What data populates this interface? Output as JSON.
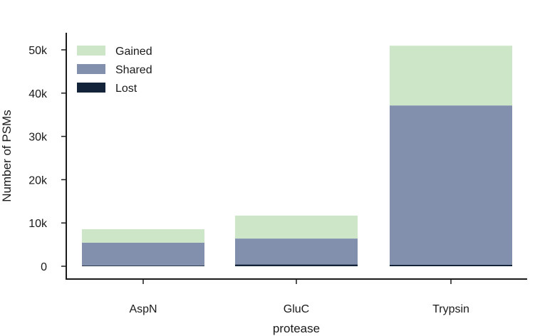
{
  "chart_data": {
    "type": "bar",
    "stacked": true,
    "title": "",
    "xlabel": "protease",
    "ylabel": "Number of PSMs",
    "categories": [
      "AspN",
      "GluC",
      "Trypsin"
    ],
    "series": [
      {
        "name": "Lost",
        "values": [
          150,
          400,
          350
        ],
        "color": "#13233a"
      },
      {
        "name": "Shared",
        "values": [
          5300,
          6000,
          36800
        ],
        "color": "#8290ae"
      },
      {
        "name": "Gained",
        "values": [
          3100,
          5300,
          13800
        ],
        "color": "#cde6c7"
      }
    ],
    "legend_order": [
      "Gained",
      "Shared",
      "Lost"
    ],
    "legend_position": "top-left",
    "ylim": [
      -3000,
      53000
    ],
    "yticks": [
      0,
      10000,
      20000,
      30000,
      40000,
      50000
    ],
    "ytick_labels": [
      "0",
      "10k",
      "20k",
      "30k",
      "40k",
      "50k"
    ],
    "grid": false
  }
}
